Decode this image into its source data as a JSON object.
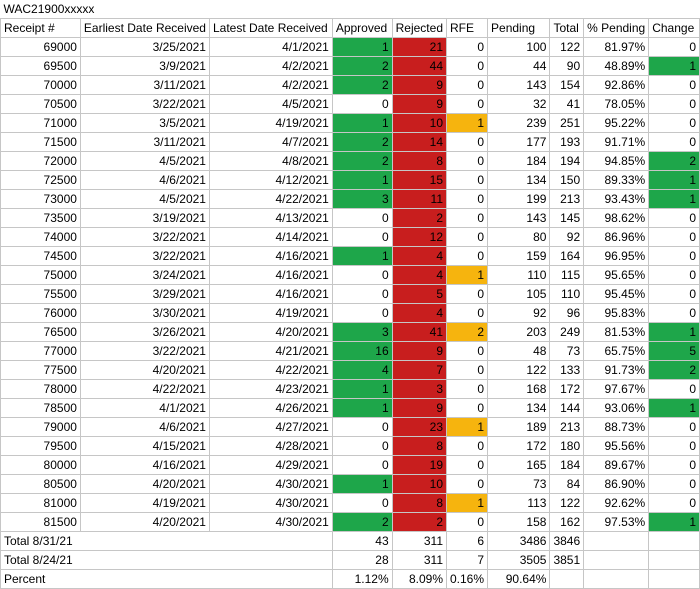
{
  "title": "WAC21900xxxxx",
  "headers": [
    "Receipt #",
    "Earliest Date Received",
    "Latest Date Received",
    "Approved",
    "Rejected",
    "RFE",
    "Pending",
    "Total",
    "% Pending",
    "Change"
  ],
  "colors": {
    "approved": "#1ea64a",
    "rejected": "#c81e1e",
    "rfe": "#f6b40e",
    "change": "#1ea64a"
  },
  "rows": [
    [
      "69000",
      "3/25/2021",
      "4/1/2021",
      "1",
      "21",
      "0",
      "100",
      "122",
      "81.97%",
      "0"
    ],
    [
      "69500",
      "3/9/2021",
      "4/2/2021",
      "2",
      "44",
      "0",
      "44",
      "90",
      "48.89%",
      "1"
    ],
    [
      "70000",
      "3/11/2021",
      "4/2/2021",
      "2",
      "9",
      "0",
      "143",
      "154",
      "92.86%",
      "0"
    ],
    [
      "70500",
      "3/22/2021",
      "4/5/2021",
      "0",
      "9",
      "0",
      "32",
      "41",
      "78.05%",
      "0"
    ],
    [
      "71000",
      "3/5/2021",
      "4/19/2021",
      "1",
      "10",
      "1",
      "239",
      "251",
      "95.22%",
      "0"
    ],
    [
      "71500",
      "3/11/2021",
      "4/7/2021",
      "2",
      "14",
      "0",
      "177",
      "193",
      "91.71%",
      "0"
    ],
    [
      "72000",
      "4/5/2021",
      "4/8/2021",
      "2",
      "8",
      "0",
      "184",
      "194",
      "94.85%",
      "2"
    ],
    [
      "72500",
      "4/6/2021",
      "4/12/2021",
      "1",
      "15",
      "0",
      "134",
      "150",
      "89.33%",
      "1"
    ],
    [
      "73000",
      "4/5/2021",
      "4/22/2021",
      "3",
      "11",
      "0",
      "199",
      "213",
      "93.43%",
      "1"
    ],
    [
      "73500",
      "3/19/2021",
      "4/13/2021",
      "0",
      "2",
      "0",
      "143",
      "145",
      "98.62%",
      "0"
    ],
    [
      "74000",
      "3/22/2021",
      "4/14/2021",
      "0",
      "12",
      "0",
      "80",
      "92",
      "86.96%",
      "0"
    ],
    [
      "74500",
      "3/22/2021",
      "4/16/2021",
      "1",
      "4",
      "0",
      "159",
      "164",
      "96.95%",
      "0"
    ],
    [
      "75000",
      "3/24/2021",
      "4/16/2021",
      "0",
      "4",
      "1",
      "110",
      "115",
      "95.65%",
      "0"
    ],
    [
      "75500",
      "3/29/2021",
      "4/16/2021",
      "0",
      "5",
      "0",
      "105",
      "110",
      "95.45%",
      "0"
    ],
    [
      "76000",
      "3/30/2021",
      "4/19/2021",
      "0",
      "4",
      "0",
      "92",
      "96",
      "95.83%",
      "0"
    ],
    [
      "76500",
      "3/26/2021",
      "4/20/2021",
      "3",
      "41",
      "2",
      "203",
      "249",
      "81.53%",
      "1"
    ],
    [
      "77000",
      "3/22/2021",
      "4/21/2021",
      "16",
      "9",
      "0",
      "48",
      "73",
      "65.75%",
      "5"
    ],
    [
      "77500",
      "4/20/2021",
      "4/22/2021",
      "4",
      "7",
      "0",
      "122",
      "133",
      "91.73%",
      "2"
    ],
    [
      "78000",
      "4/22/2021",
      "4/23/2021",
      "1",
      "3",
      "0",
      "168",
      "172",
      "97.67%",
      "0"
    ],
    [
      "78500",
      "4/1/2021",
      "4/26/2021",
      "1",
      "9",
      "0",
      "134",
      "144",
      "93.06%",
      "1"
    ],
    [
      "79000",
      "4/6/2021",
      "4/27/2021",
      "0",
      "23",
      "1",
      "189",
      "213",
      "88.73%",
      "0"
    ],
    [
      "79500",
      "4/15/2021",
      "4/28/2021",
      "0",
      "8",
      "0",
      "172",
      "180",
      "95.56%",
      "0"
    ],
    [
      "80000",
      "4/16/2021",
      "4/29/2021",
      "0",
      "19",
      "0",
      "165",
      "184",
      "89.67%",
      "0"
    ],
    [
      "80500",
      "4/20/2021",
      "4/30/2021",
      "1",
      "10",
      "0",
      "73",
      "84",
      "86.90%",
      "0"
    ],
    [
      "81000",
      "4/19/2021",
      "4/30/2021",
      "0",
      "8",
      "1",
      "113",
      "122",
      "92.62%",
      "0"
    ],
    [
      "81500",
      "4/20/2021",
      "4/30/2021",
      "2",
      "2",
      "0",
      "158",
      "162",
      "97.53%",
      "1"
    ]
  ],
  "totals": [
    {
      "label": "Total 8/31/21",
      "approved": "43",
      "rejected": "311",
      "rfe": "6",
      "pending": "3486",
      "total": "3846"
    },
    {
      "label": "Total 8/24/21",
      "approved": "28",
      "rejected": "311",
      "rfe": "7",
      "pending": "3505",
      "total": "3851"
    }
  ],
  "percent": {
    "label": "Percent",
    "approved": "1.12%",
    "rejected": "8.09%",
    "rfe": "0.16%",
    "pending": "90.64%"
  }
}
